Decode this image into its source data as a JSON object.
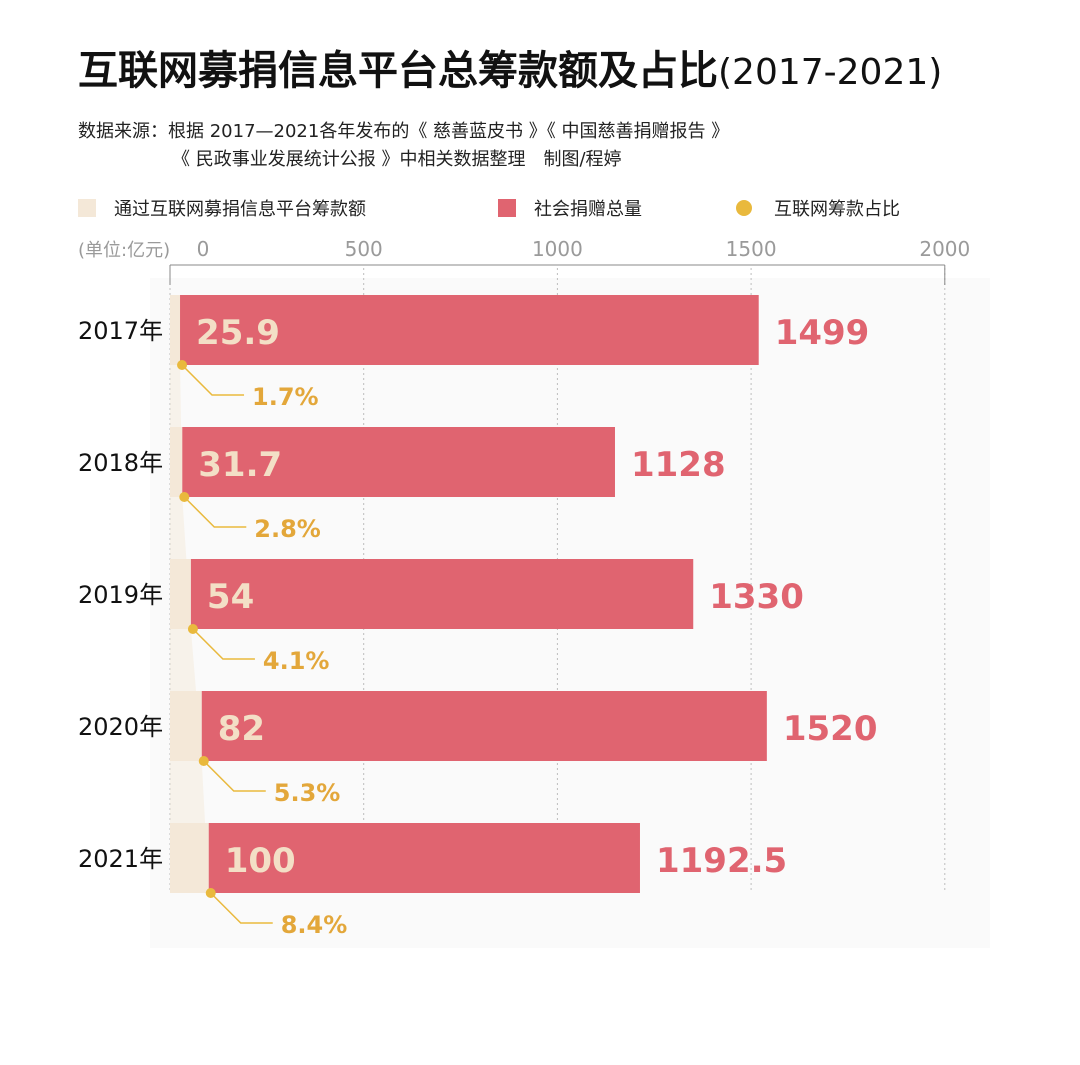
{
  "title": {
    "main": "互联网募捐信息平台总筹款额及占比",
    "years": "(2017-2021)"
  },
  "source": {
    "line1": "数据来源：根据 2017—2021各年发布的《 慈善蓝皮书 》《 中国慈善捐赠报告 》",
    "line2": "《 民政事业发展统计公报 》中相关数据整理　制图/程婷"
  },
  "legend": [
    {
      "label": "通过互联网募捐信息平台筹款额",
      "color": "#f4e8d8",
      "shape": "square"
    },
    {
      "label": "社会捐赠总量",
      "color": "#e06470",
      "shape": "square"
    },
    {
      "label": "互联网筹款占比",
      "color": "#e9b93d",
      "shape": "dot"
    }
  ],
  "colors": {
    "internet": "#f4e8d8",
    "total": "#e06470",
    "ratio": "#e9b93d",
    "axis": "#888888",
    "grid": "#bdbdbd",
    "tick": "#9a9a9a",
    "ratio_text": "#e3a73a",
    "total_text": "#e06470",
    "internet_text": "#f3dfc6"
  },
  "chart_data": {
    "type": "bar",
    "orientation": "horizontal",
    "unit_label": "(单位:亿元)",
    "xlim": [
      0,
      2000
    ],
    "xticks": [
      0,
      500,
      1000,
      1500,
      2000
    ],
    "grid": true,
    "categories": [
      "2017年",
      "2018年",
      "2019年",
      "2020年",
      "2021年"
    ],
    "series": [
      {
        "name": "通过互联网募捐信息平台筹款额",
        "values": [
          25.9,
          31.7,
          54,
          82,
          100
        ],
        "labels": [
          "25.9",
          "31.7",
          "54",
          "82",
          "100"
        ]
      },
      {
        "name": "社会捐赠总量",
        "values": [
          1499,
          1128,
          1330,
          1520,
          1192.5
        ],
        "labels": [
          "1499",
          "1128",
          "1330",
          "1520",
          "1192.5"
        ]
      },
      {
        "name": "互联网筹款占比",
        "values": [
          1.7,
          2.8,
          4.1,
          5.3,
          8.4
        ],
        "labels": [
          "1.7%",
          "2.8%",
          "4.1%",
          "5.3%",
          "8.4%"
        ]
      }
    ]
  }
}
